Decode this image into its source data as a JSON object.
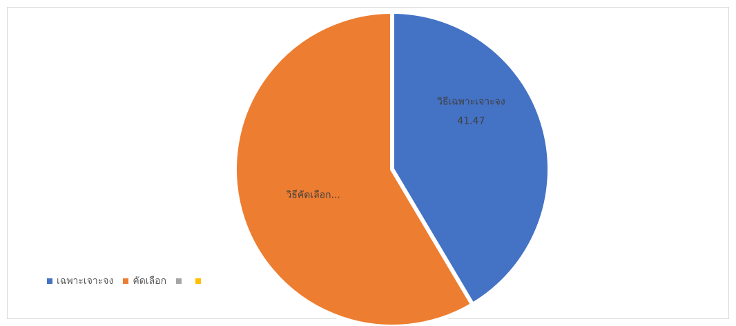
{
  "chart_data": {
    "type": "pie",
    "slices": [
      {
        "label": "เฉพาะเจาะจง",
        "value": 41.47,
        "color": "#4472c4",
        "data_label": "วิธีเฉพาะเจาะจง",
        "value_label": "41.47"
      },
      {
        "label": "คัดเลือก",
        "value": 58.53,
        "color": "#ed7d31",
        "data_label": "วิธีคัดเลือก...",
        "value_label": ""
      },
      {
        "label": "",
        "value": 0,
        "color": "#a5a5a5"
      },
      {
        "label": "",
        "value": 0,
        "color": "#ffc000"
      }
    ],
    "title": "",
    "legend_position": "bottom-left"
  }
}
